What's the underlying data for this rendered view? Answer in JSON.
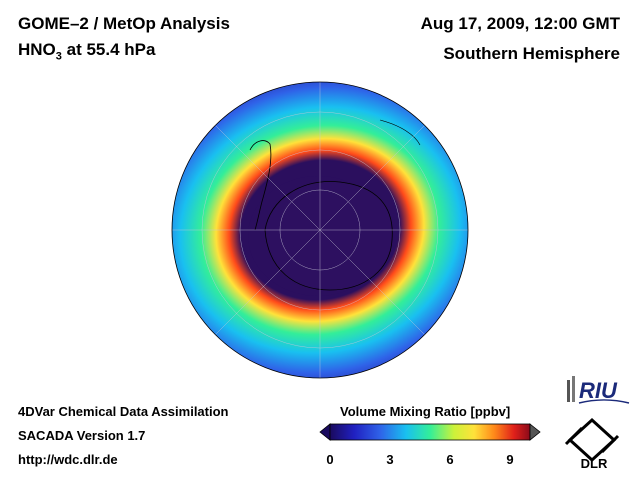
{
  "header": {
    "title": "GOME–2 / MetOp Analysis",
    "species_prefix": "HNO",
    "species_subscript": "3",
    "species_suffix": " at 55.4 hPa",
    "datetime": "Aug 17, 2009, 12:00 GMT",
    "region": "Southern Hemisphere"
  },
  "footer": {
    "line1": "4DVar Chemical Data Assimilation",
    "line2": "SACADA Version 1.7",
    "line3": "http://wdc.dlr.de"
  },
  "colorbar": {
    "title": "Volume Mixing Ratio [ppbv]",
    "ticks": [
      "0",
      "3",
      "6",
      "9"
    ],
    "tick_values": [
      0,
      3,
      6,
      9
    ],
    "min": 0,
    "max": 10
  },
  "logos": {
    "riu": "RIU",
    "dlr": "DLR"
  },
  "colors": {
    "ocean_dark": "#2a1f9e",
    "vortex_core": "#2b0f5e",
    "collar": "#33ee99",
    "max_ring": "#ff4a1a"
  }
}
